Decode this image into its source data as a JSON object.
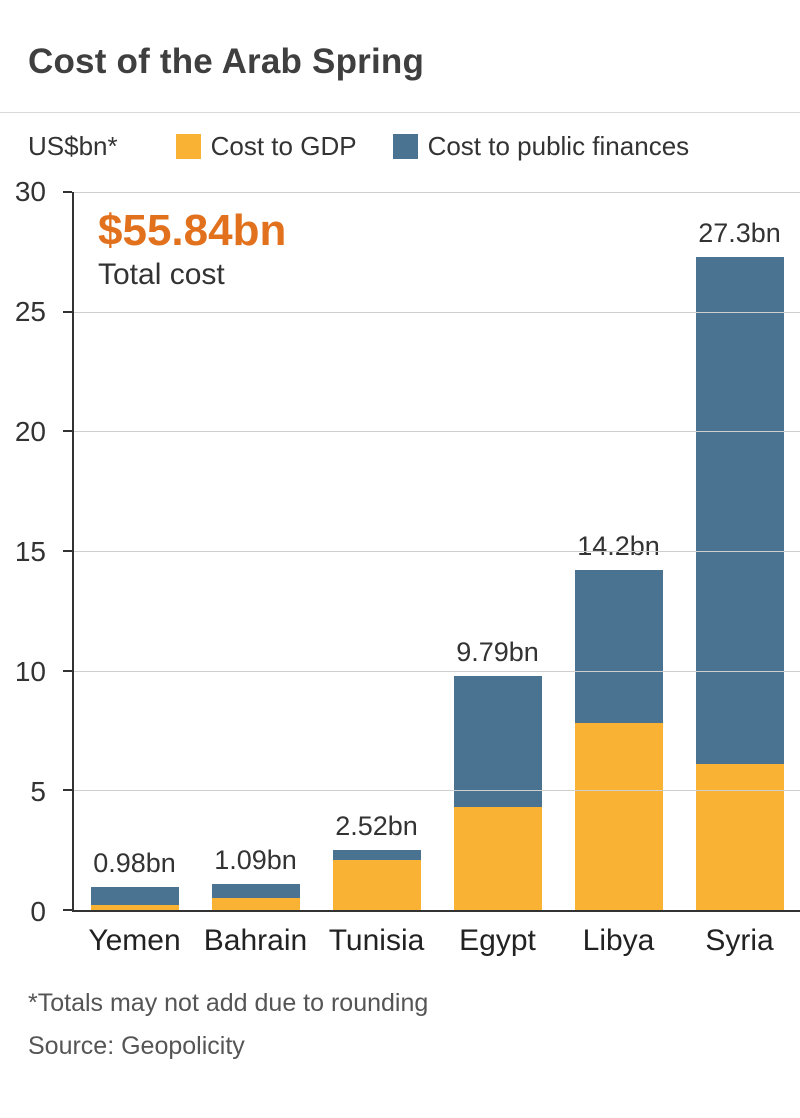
{
  "title": "Cost of the Arab Spring",
  "legend": {
    "unit_label": "US$bn*",
    "items": [
      {
        "label": "Cost to GDP",
        "color": "#F9B234"
      },
      {
        "label": "Cost to public finances",
        "color": "#4A7291"
      }
    ]
  },
  "annotation": {
    "total": "$55.84bn",
    "caption": "Total cost"
  },
  "footnotes": {
    "rounding": "*Totals may not add due to rounding",
    "source": "Source: Geopolicity"
  },
  "colors": {
    "accent_orange": "#E2711D",
    "axis": "#333333",
    "grid": "#cfcfcf",
    "title": "#3F3F3F"
  },
  "chart_data": {
    "type": "bar",
    "stacked": true,
    "title": "Cost of the Arab Spring",
    "unit": "US$bn",
    "categories": [
      "Yemen",
      "Bahrain",
      "Tunisia",
      "Egypt",
      "Libya",
      "Syria"
    ],
    "series": [
      {
        "name": "Cost to GDP",
        "color": "#F9B234",
        "values": [
          0.2,
          0.5,
          2.1,
          4.3,
          7.8,
          6.1
        ]
      },
      {
        "name": "Cost to public finances",
        "color": "#4A7291",
        "values": [
          0.78,
          0.59,
          0.42,
          5.49,
          6.4,
          21.2
        ]
      }
    ],
    "totals": [
      0.98,
      1.09,
      2.52,
      9.79,
      14.2,
      27.3
    ],
    "total_labels": [
      "0.98bn",
      "1.09bn",
      "2.52bn",
      "9.79bn",
      "14.2bn",
      "27.3bn"
    ],
    "grand_total_label": "$55.84bn",
    "xlabel": "",
    "ylabel": "US$bn",
    "ylim": [
      0,
      30
    ],
    "yticks": [
      0,
      5,
      10,
      15,
      20,
      25,
      30
    ],
    "grid": true,
    "legend_position": "top"
  }
}
